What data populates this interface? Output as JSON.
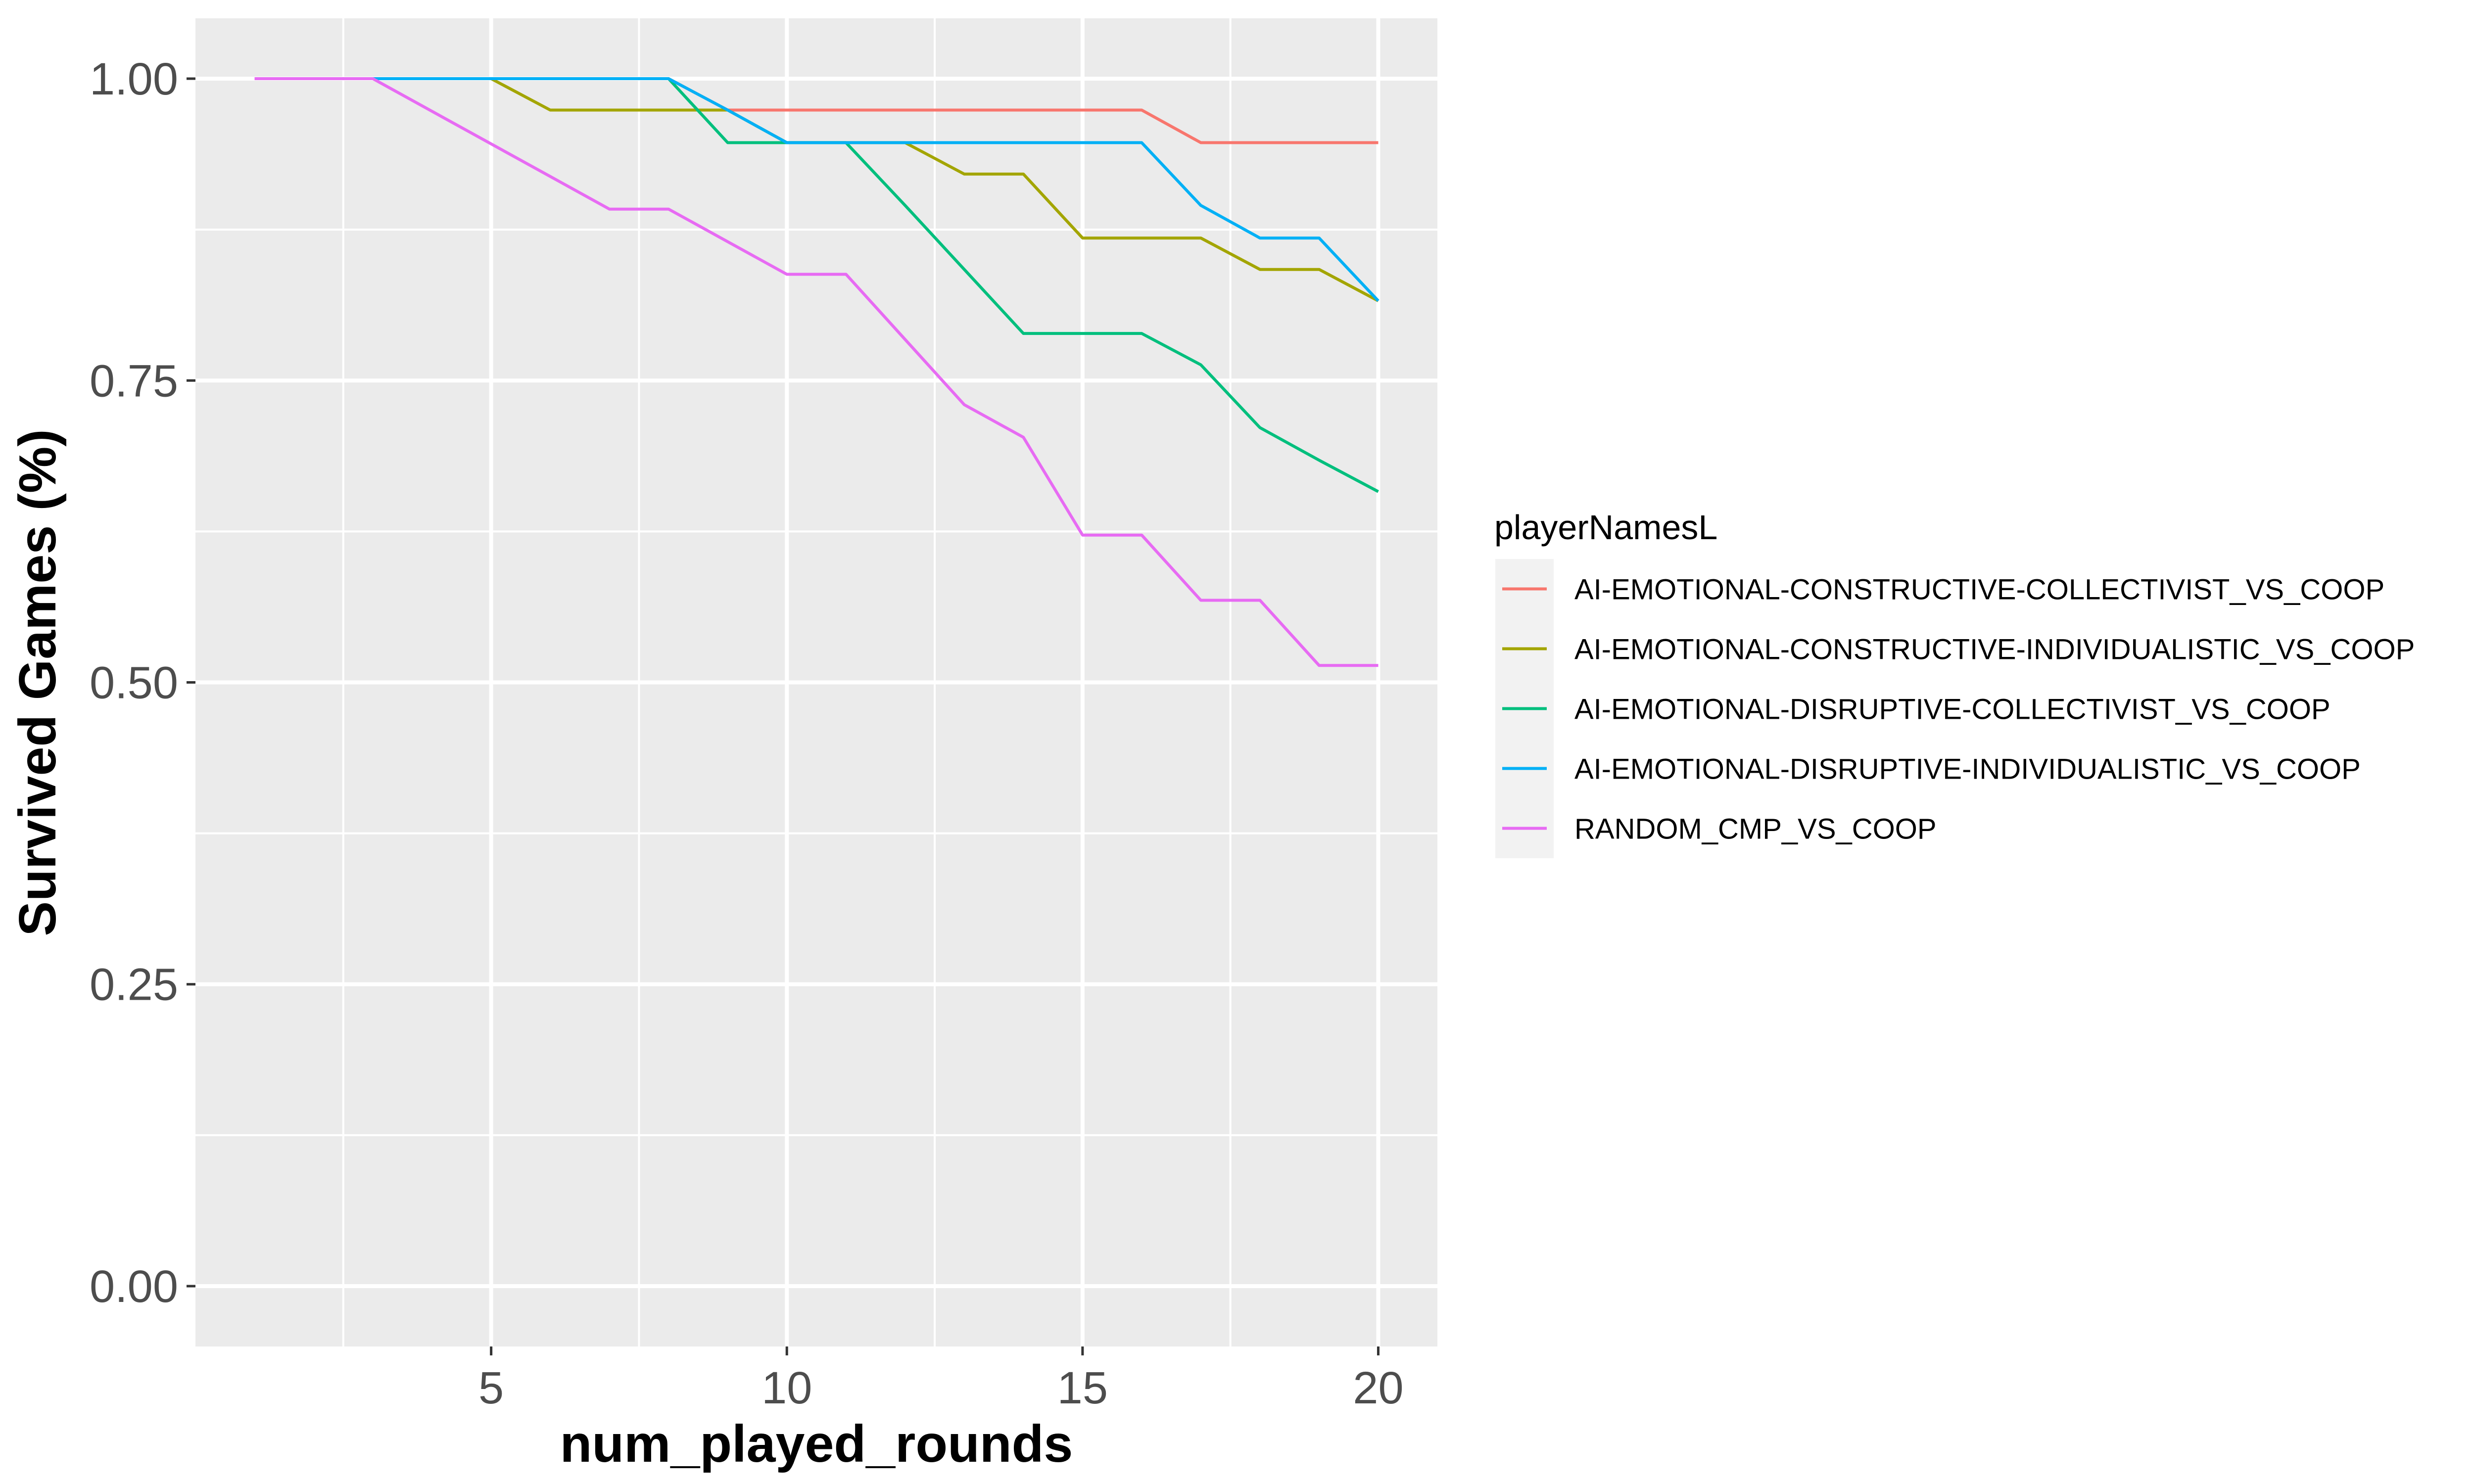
{
  "chart_data": {
    "type": "line",
    "xlabel": "num_played_rounds",
    "ylabel": "Survived Games (%)",
    "xlim": [
      0,
      21
    ],
    "ylim": [
      -0.05,
      1.05
    ],
    "x_ticks": [
      5,
      10,
      15,
      20
    ],
    "x_tick_labels": [
      "5",
      "10",
      "15",
      "20"
    ],
    "y_ticks": [
      0,
      0.25,
      0.5,
      0.75,
      1.0
    ],
    "y_tick_labels": [
      "0.00",
      "0.25",
      "0.50",
      "0.75",
      "1.00"
    ],
    "grid": true,
    "legend": {
      "title": "playerNamesL",
      "position": "right"
    },
    "x": [
      1,
      2,
      3,
      4,
      5,
      6,
      7,
      8,
      9,
      10,
      11,
      12,
      13,
      14,
      15,
      16,
      17,
      18,
      19,
      20
    ],
    "series": [
      {
        "name": "AI-EMOTIONAL-CONSTRUCTIVE-COLLECTIVIST_VS_COOP",
        "color": "#F8766D",
        "values": [
          1,
          1,
          1,
          1,
          1,
          1,
          1,
          1,
          0.974,
          0.974,
          0.974,
          0.974,
          0.974,
          0.974,
          0.974,
          0.974,
          0.947,
          0.947,
          0.947,
          0.947
        ]
      },
      {
        "name": "AI-EMOTIONAL-CONSTRUCTIVE-INDIVIDUALISTIC_VS_COOP",
        "color": "#A3A500",
        "values": [
          1,
          1,
          1,
          1,
          1,
          0.974,
          0.974,
          0.974,
          0.974,
          0.947,
          0.947,
          0.947,
          0.921,
          0.921,
          0.868,
          0.868,
          0.868,
          0.842,
          0.842,
          0.816
        ]
      },
      {
        "name": "AI-EMOTIONAL-DISRUPTIVE-COLLECTIVIST_VS_COOP",
        "color": "#00BF7D",
        "values": [
          1,
          1,
          1,
          1,
          1,
          1,
          1,
          1,
          0.947,
          0.947,
          0.947,
          0.895,
          0.842,
          0.789,
          0.789,
          0.789,
          0.763,
          0.711,
          0.684,
          0.658
        ]
      },
      {
        "name": "AI-EMOTIONAL-DISRUPTIVE-INDIVIDUALISTIC_VS_COOP",
        "color": "#00B0F6",
        "values": [
          1,
          1,
          1,
          1,
          1,
          1,
          1,
          1,
          0.974,
          0.947,
          0.947,
          0.947,
          0.947,
          0.947,
          0.947,
          0.947,
          0.895,
          0.868,
          0.868,
          0.816
        ]
      },
      {
        "name": "RANDOM_CMP_VS_COOP",
        "color": "#E76BF3",
        "values": [
          1,
          1,
          1,
          0.973,
          0.946,
          0.919,
          0.892,
          0.892,
          0.865,
          0.838,
          0.838,
          0.784,
          0.73,
          0.703,
          0.622,
          0.622,
          0.568,
          0.568,
          0.514,
          0.514
        ]
      }
    ],
    "panel_color": "#EBEBEB",
    "grid_color": "#FFFFFF"
  }
}
